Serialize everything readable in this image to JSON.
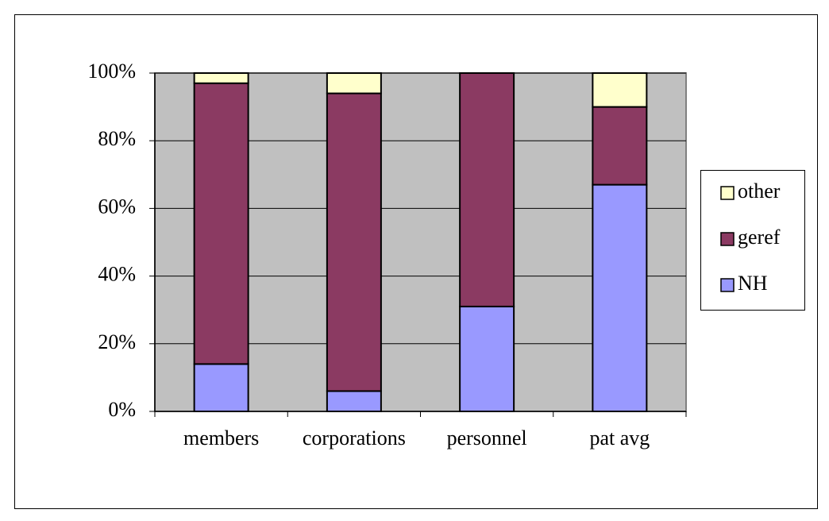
{
  "chart_data": {
    "type": "stacked_bar",
    "categories": [
      "members",
      "corporations",
      "personnel",
      "pat avg"
    ],
    "series": [
      {
        "name": "NH",
        "color": "#9999ff",
        "values": [
          14,
          6,
          31,
          67
        ]
      },
      {
        "name": "geref",
        "color": "#8b3a62",
        "values": [
          83,
          88,
          69,
          23
        ]
      },
      {
        "name": "other",
        "color": "#ffffcc",
        "values": [
          3,
          6,
          0,
          10
        ]
      }
    ],
    "ylim": [
      0,
      100
    ],
    "yticks": [
      {
        "value": 0,
        "label": "0%"
      },
      {
        "value": 20,
        "label": "20%"
      },
      {
        "value": 40,
        "label": "40%"
      },
      {
        "value": 60,
        "label": "60%"
      },
      {
        "value": 80,
        "label": "80%"
      },
      {
        "value": 100,
        "label": "100%"
      }
    ],
    "grid": true,
    "legend": "right"
  }
}
